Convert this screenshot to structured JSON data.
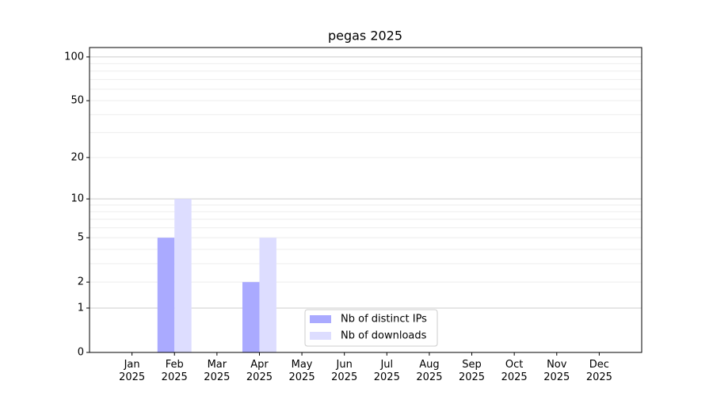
{
  "chart_data": {
    "type": "bar",
    "title": "pegas 2025",
    "categories": [
      "Jan 2025",
      "Feb 2025",
      "Mar 2025",
      "Apr 2025",
      "May 2025",
      "Jun 2025",
      "Jul 2025",
      "Aug 2025",
      "Sep 2025",
      "Oct 2025",
      "Nov 2025",
      "Dec 2025"
    ],
    "series": [
      {
        "name": "Nb of distinct IPs",
        "color": "#aaaaff",
        "values": [
          0,
          5,
          0,
          2,
          0,
          0,
          0,
          0,
          0,
          0,
          0,
          0
        ]
      },
      {
        "name": "Nb of downloads",
        "color": "#ddddff",
        "values": [
          0,
          10,
          0,
          5,
          0,
          0,
          0,
          0,
          0,
          0,
          0,
          0
        ]
      }
    ],
    "yscale": "symlog",
    "ylim": [
      0,
      116
    ],
    "yticks": [
      0,
      1,
      2,
      5,
      10,
      20,
      50,
      100
    ],
    "yminor": [
      3,
      4,
      6,
      7,
      8,
      9,
      30,
      40,
      60,
      70,
      80,
      90
    ],
    "grid": true,
    "legend": "lower center"
  }
}
